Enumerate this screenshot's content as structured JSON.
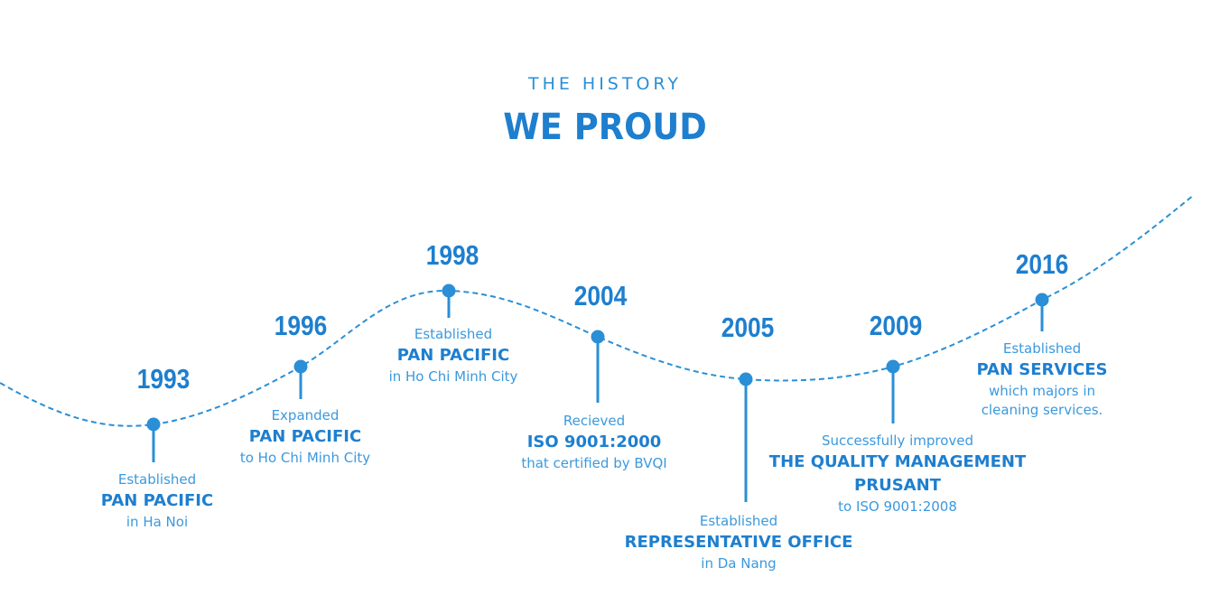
{
  "header": {
    "subtitle": "THE HISTORY",
    "title": "WE PROUD"
  },
  "colors": {
    "accent": "#2a8fd6",
    "title": "#1e7fcf",
    "line": "#2a8fd6"
  },
  "events": [
    {
      "year": "1993",
      "pre": "Established",
      "main": "PAN PACIFIC",
      "post": "in Ha Noi"
    },
    {
      "year": "1996",
      "pre": "Expanded",
      "main": "PAN PACIFIC",
      "post": "to Ho Chi Minh City"
    },
    {
      "year": "1998",
      "pre": "Established",
      "main": "PAN PACIFIC",
      "post": "in Ho Chi Minh City"
    },
    {
      "year": "2004",
      "pre": "Recieved",
      "main": "ISO 9001:2000",
      "post": "that certified by BVQI"
    },
    {
      "year": "2005",
      "pre": "Established",
      "main": "REPRESENTATIVE OFFICE",
      "post": "in Da Nang"
    },
    {
      "year": "2009",
      "pre": "Successfully improved",
      "main": "THE QUALITY MANAGEMENT PRUSANT",
      "post": "to ISO 9001:2008"
    },
    {
      "year": "2016",
      "pre": "Established",
      "main": "PAN SERVICES",
      "post": "which majors in cleaning services."
    }
  ]
}
